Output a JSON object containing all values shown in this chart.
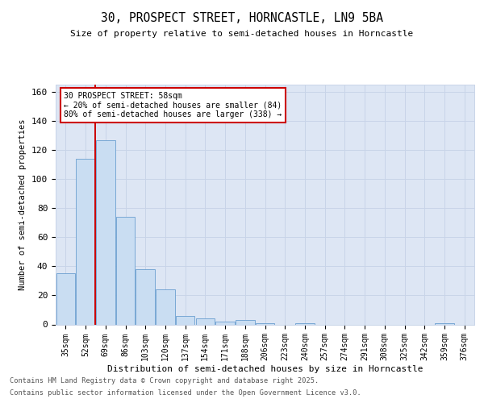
{
  "title_line1": "30, PROSPECT STREET, HORNCASTLE, LN9 5BA",
  "title_line2": "Size of property relative to semi-detached houses in Horncastle",
  "xlabel": "Distribution of semi-detached houses by size in Horncastle",
  "ylabel": "Number of semi-detached properties",
  "categories": [
    "35sqm",
    "52sqm",
    "69sqm",
    "86sqm",
    "103sqm",
    "120sqm",
    "137sqm",
    "154sqm",
    "171sqm",
    "188sqm",
    "206sqm",
    "223sqm",
    "240sqm",
    "257sqm",
    "274sqm",
    "291sqm",
    "308sqm",
    "325sqm",
    "342sqm",
    "359sqm",
    "376sqm"
  ],
  "values": [
    35,
    114,
    127,
    74,
    38,
    24,
    6,
    4,
    2,
    3,
    1,
    0,
    1,
    0,
    0,
    0,
    0,
    0,
    0,
    1,
    0
  ],
  "bar_color": "#c9ddf2",
  "bar_edge_color": "#6a9fd0",
  "grid_color": "#c8d4e8",
  "bg_color": "#dde6f4",
  "vline_color": "#cc0000",
  "annotation_text": "30 PROSPECT STREET: 58sqm\n← 20% of semi-detached houses are smaller (84)\n80% of semi-detached houses are larger (338) →",
  "annotation_box_color": "#cc0000",
  "footer_line1": "Contains HM Land Registry data © Crown copyright and database right 2025.",
  "footer_line2": "Contains public sector information licensed under the Open Government Licence v3.0.",
  "ylim": [
    0,
    165
  ],
  "yticks": [
    0,
    20,
    40,
    60,
    80,
    100,
    120,
    140,
    160
  ]
}
